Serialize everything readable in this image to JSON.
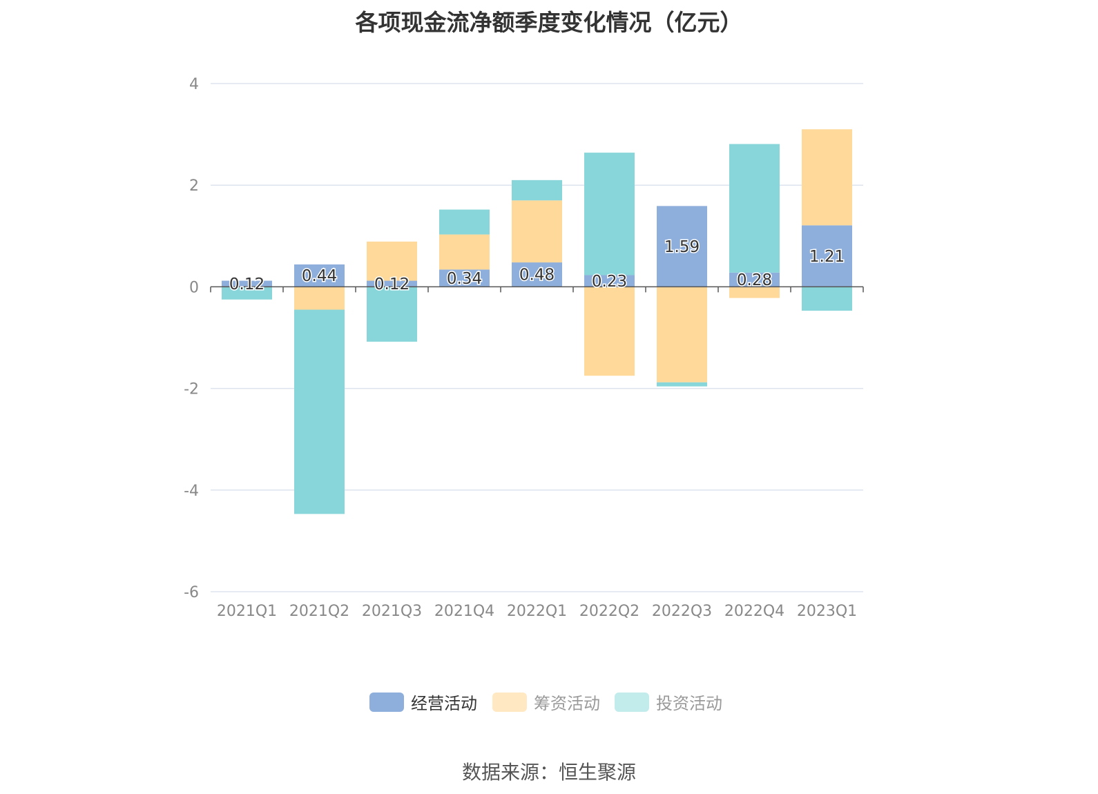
{
  "title": "各项现金流净额季度变化情况（亿元）",
  "source": "数据来源：恒生聚源",
  "colors": {
    "operating": "#8EAEDB",
    "financing": "#FFD99A",
    "investing": "#88D6D9",
    "grid": "#DDE3EE",
    "axis_text": "#888888"
  },
  "legend": [
    {
      "name": "经营活动",
      "color": "#8EAEDB",
      "swatch": "#8EAEDB",
      "text_color": "#333333"
    },
    {
      "name": "筹资活动",
      "color": "#FFD99A",
      "swatch": "#FFE8C2",
      "text_color": "#999999"
    },
    {
      "name": "投资活动",
      "color": "#88D6D9",
      "swatch": "#C2EBEC",
      "text_color": "#999999"
    }
  ],
  "chart_data": {
    "type": "bar",
    "stacked": true,
    "title": "各项现金流净额季度变化情况（亿元）",
    "categories": [
      "2021Q1",
      "2021Q2",
      "2021Q3",
      "2021Q4",
      "2022Q1",
      "2022Q2",
      "2022Q3",
      "2022Q4",
      "2023Q1"
    ],
    "ylim": [
      -6,
      4
    ],
    "yticks": [
      "4",
      "2",
      "0",
      "-2",
      "-4",
      "-6"
    ],
    "grid": true,
    "legend_position": "bottom",
    "series": [
      {
        "name": "经营活动",
        "values": [
          0.12,
          0.44,
          0.12,
          0.34,
          0.48,
          0.23,
          1.59,
          0.28,
          1.21
        ],
        "labels": [
          "0.12",
          "0.44",
          "0.12",
          "0.34",
          "0.48",
          "0.23",
          "1.59",
          "0.28",
          "1.21"
        ]
      },
      {
        "name": "筹资活动",
        "values": [
          0,
          -0.45,
          0.77,
          0.69,
          1.22,
          -1.75,
          -1.88,
          -0.22,
          1.89
        ]
      },
      {
        "name": "投资活动",
        "values": [
          -0.25,
          -4.02,
          -1.08,
          0.49,
          0.4,
          2.41,
          -0.08,
          2.53,
          -0.47
        ]
      }
    ]
  }
}
